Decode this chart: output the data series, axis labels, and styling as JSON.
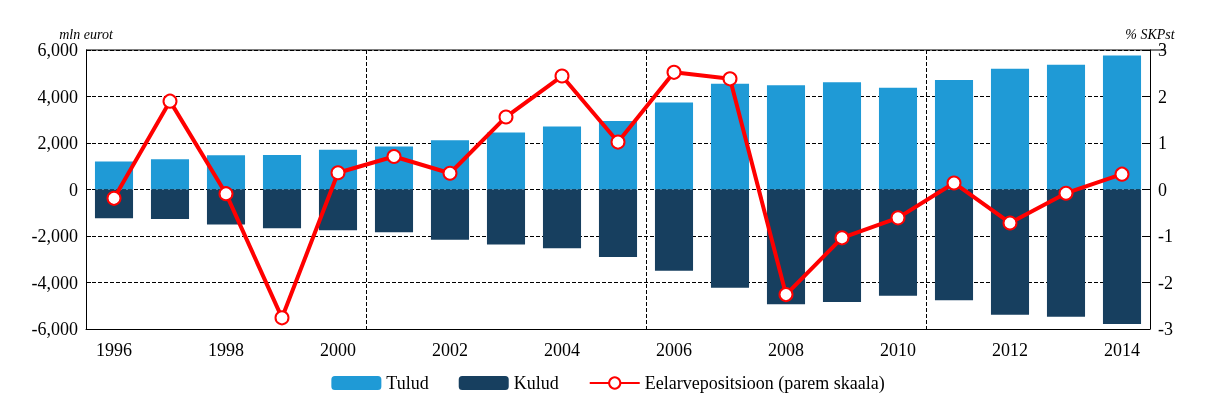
{
  "chart_data": {
    "type": "bar",
    "ylabel": "mln eurot",
    "y2label": "% SKPst",
    "categories": [
      "1996",
      null,
      "1998",
      null,
      "2000",
      null,
      "2002",
      null,
      "2004",
      null,
      "2006",
      null,
      "2008",
      null,
      "2010",
      null,
      "2012",
      null,
      "2014"
    ],
    "stacked": true,
    "series": [
      {
        "name": "Tulud",
        "color": "#1f9ad6",
        "values": [
          1200,
          1300,
          1470,
          1480,
          1710,
          1850,
          2120,
          2450,
          2710,
          2950,
          3740,
          4550,
          4480,
          4610,
          4380,
          4710,
          5190,
          5370,
          5760
        ]
      },
      {
        "name": "Kulud",
        "color": "#173f5f",
        "values": [
          -1240,
          -1270,
          -1510,
          -1670,
          -1750,
          -1840,
          -2160,
          -2370,
          -2530,
          -2900,
          -3490,
          -4230,
          -4940,
          -4840,
          -4570,
          -4760,
          -5390,
          -5470,
          -5780
        ]
      },
      {
        "name": "Eelarvepositsioon (parem skaala)",
        "type": "line",
        "axis": "y2",
        "color": "#ff0000",
        "marker": "circle",
        "values": [
          -0.19,
          1.9,
          -0.09,
          -2.76,
          0.36,
          0.71,
          0.35,
          1.56,
          2.44,
          1.02,
          2.52,
          2.38,
          -2.26,
          -1.04,
          -0.61,
          0.14,
          -0.72,
          -0.08,
          0.33
        ]
      }
    ],
    "ylim": [
      -6000,
      6000
    ],
    "yticks": [
      {
        "value": -6000,
        "label": "-6,000"
      },
      {
        "value": -4000,
        "label": "-4,000"
      },
      {
        "value": -2000,
        "label": "-2,000"
      },
      0,
      {
        "value": 2000,
        "label": "2,000"
      },
      {
        "value": 4000,
        "label": "4,000"
      },
      {
        "value": 6000,
        "label": "6,000"
      }
    ],
    "y2lim": [
      -3,
      3
    ],
    "y2ticks": [
      -3,
      -2,
      -1,
      0,
      1,
      2,
      3
    ],
    "grid": true,
    "legend": "bottom"
  }
}
